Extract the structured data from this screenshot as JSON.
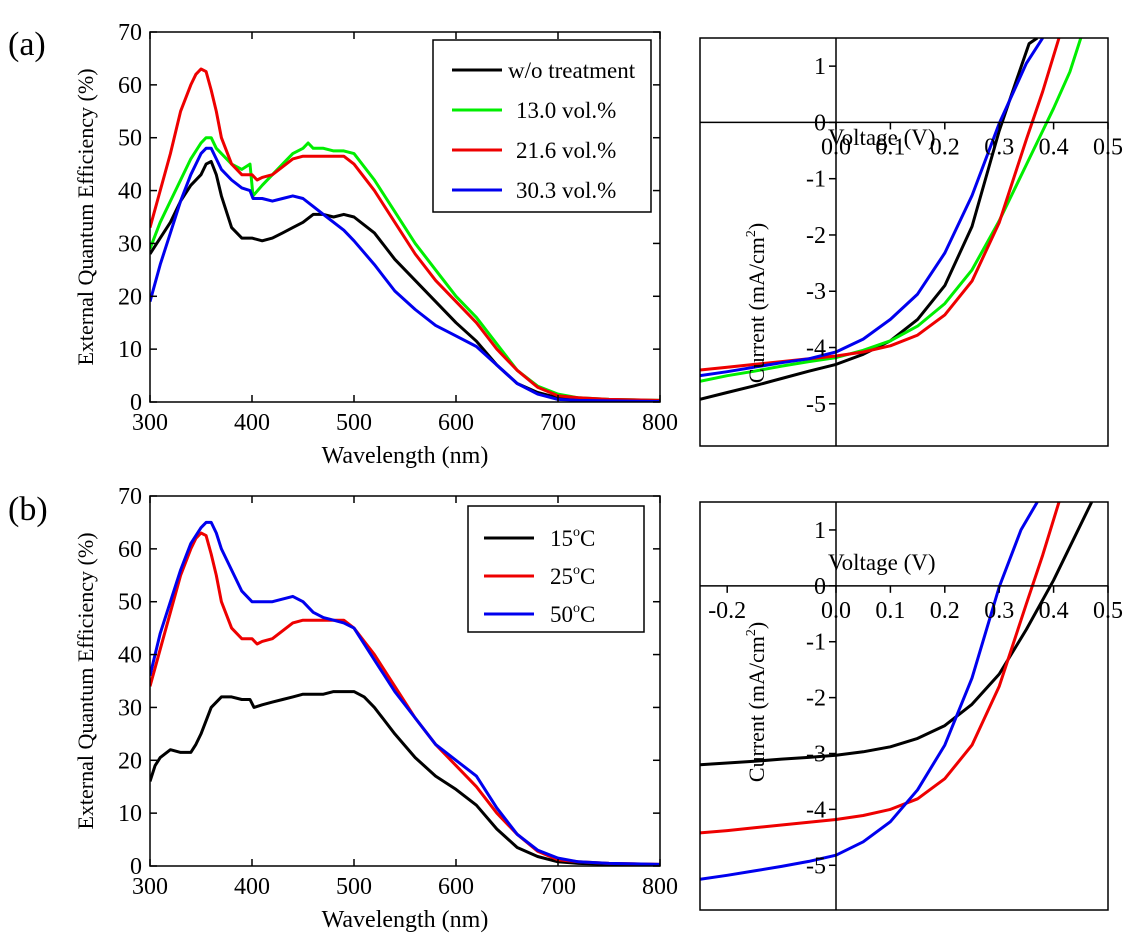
{
  "panel_labels": [
    "(a)",
    "(b)"
  ],
  "chart_data": [
    {
      "id": "eqe_a",
      "type": "line",
      "xlabel": "Wavelength (nm)",
      "ylabel": "External Quantum Efficiency (%)",
      "xlim": [
        300,
        800
      ],
      "ylim": [
        0,
        70
      ],
      "xticks": [
        "300",
        "400",
        "500",
        "600",
        "700",
        "800"
      ],
      "yticks": [
        "0",
        "10",
        "20",
        "30",
        "40",
        "50",
        "60",
        "70"
      ],
      "legend_position": "top-right",
      "series": [
        {
          "name": "w/o treatment",
          "color": "#000000",
          "x": [
            300,
            310,
            320,
            330,
            340,
            350,
            355,
            360,
            365,
            370,
            380,
            390,
            400,
            410,
            420,
            430,
            440,
            450,
            460,
            470,
            480,
            490,
            500,
            520,
            540,
            560,
            580,
            600,
            620,
            640,
            660,
            680,
            700,
            720,
            750,
            800
          ],
          "y": [
            28,
            31,
            34,
            38,
            41,
            43,
            45,
            45.5,
            43,
            39,
            33,
            31,
            31,
            30.5,
            31,
            32,
            33,
            34,
            35.5,
            35.5,
            35,
            35.5,
            35,
            32,
            27,
            23,
            19,
            15,
            11.5,
            7,
            3.5,
            1.8,
            0.8,
            0.5,
            0.3,
            0.2
          ]
        },
        {
          "name": "13.0 vol.%",
          "color": "#00ee00",
          "x": [
            300,
            310,
            320,
            330,
            340,
            350,
            355,
            360,
            365,
            370,
            380,
            390,
            398,
            401,
            410,
            420,
            430,
            440,
            450,
            455,
            460,
            470,
            480,
            490,
            500,
            520,
            540,
            560,
            580,
            600,
            620,
            640,
            660,
            680,
            700,
            720,
            750,
            800
          ],
          "y": [
            29,
            34,
            38,
            42,
            46,
            49,
            50,
            50,
            48,
            47,
            45,
            44,
            45,
            39,
            41,
            43,
            45,
            47,
            48,
            49,
            48,
            48,
            47.5,
            47.5,
            47,
            42,
            36,
            30,
            25,
            20,
            16,
            11,
            6,
            3,
            1.5,
            0.8,
            0.5,
            0.3
          ]
        },
        {
          "name": "21.6 vol.%",
          "color": "#ee0000",
          "x": [
            300,
            310,
            320,
            330,
            340,
            345,
            350,
            355,
            360,
            365,
            370,
            380,
            390,
            400,
            405,
            410,
            420,
            430,
            440,
            450,
            460,
            470,
            480,
            490,
            500,
            520,
            540,
            560,
            580,
            600,
            620,
            640,
            660,
            680,
            700,
            720,
            750,
            800
          ],
          "y": [
            33,
            40,
            47,
            55,
            60,
            62,
            63,
            62.5,
            59,
            55,
            50,
            45,
            43,
            43,
            42,
            42.5,
            43,
            44.5,
            46,
            46.5,
            46.5,
            46.5,
            46.5,
            46.5,
            45,
            40,
            34,
            28,
            23,
            19,
            15,
            10,
            6,
            2.8,
            1.2,
            0.8,
            0.5,
            0.3
          ]
        },
        {
          "name": "30.3 vol.%",
          "color": "#0000ee",
          "x": [
            300,
            310,
            320,
            330,
            340,
            350,
            355,
            360,
            365,
            370,
            380,
            390,
            398,
            401,
            410,
            420,
            430,
            440,
            450,
            460,
            470,
            480,
            490,
            500,
            520,
            540,
            560,
            580,
            600,
            620,
            640,
            660,
            680,
            700,
            720,
            750,
            800
          ],
          "y": [
            19,
            26,
            32,
            38,
            43,
            47,
            48,
            48,
            46,
            44,
            42,
            40.5,
            40,
            38.5,
            38.5,
            38,
            38.5,
            39,
            38.5,
            37,
            35.5,
            34,
            32.5,
            30.5,
            26,
            21,
            17.5,
            14.5,
            12.5,
            10.5,
            7,
            3.5,
            1.5,
            0.5,
            0.3,
            0.2,
            0.1
          ]
        }
      ]
    },
    {
      "id": "jv_a",
      "type": "line",
      "xlabel": "Voltage (V)",
      "ylabel": "Current (mA/cm",
      "ylabel_sup": "2",
      "ylabel_close": ")",
      "xlim": [
        -0.25,
        0.5
      ],
      "ylim": [
        -5.75,
        1.5
      ],
      "xticks": [
        "0.0",
        "0.1",
        "0.2",
        "0.3",
        "0.4",
        "0.5"
      ],
      "yticks": [
        "-5",
        "-4",
        "-3",
        "-2",
        "-1",
        "0",
        "1"
      ],
      "series": [
        {
          "name": "w/o treatment",
          "color": "#000000",
          "x": [
            -0.25,
            -0.2,
            -0.15,
            -0.1,
            -0.05,
            0,
            0.05,
            0.1,
            0.15,
            0.2,
            0.25,
            0.3,
            0.33,
            0.355,
            0.37
          ],
          "y": [
            -4.92,
            -4.8,
            -4.68,
            -4.55,
            -4.42,
            -4.3,
            -4.12,
            -3.88,
            -3.5,
            -2.9,
            -1.85,
            -0.15,
            0.7,
            1.4,
            1.5
          ]
        },
        {
          "name": "13.0 vol.%",
          "color": "#00ee00",
          "x": [
            -0.25,
            -0.2,
            -0.15,
            -0.1,
            -0.05,
            0,
            0.05,
            0.1,
            0.15,
            0.2,
            0.25,
            0.3,
            0.35,
            0.4,
            0.43,
            0.45
          ],
          "y": [
            -4.6,
            -4.5,
            -4.42,
            -4.33,
            -4.25,
            -4.18,
            -4.05,
            -3.88,
            -3.62,
            -3.22,
            -2.62,
            -1.75,
            -0.75,
            0.25,
            0.9,
            1.5
          ]
        },
        {
          "name": "21.6 vol.%",
          "color": "#ee0000",
          "x": [
            -0.25,
            -0.2,
            -0.15,
            -0.1,
            -0.05,
            0,
            0.05,
            0.1,
            0.15,
            0.2,
            0.25,
            0.3,
            0.35,
            0.38,
            0.41
          ],
          "y": [
            -4.4,
            -4.35,
            -4.3,
            -4.25,
            -4.2,
            -4.15,
            -4.08,
            -3.97,
            -3.78,
            -3.42,
            -2.82,
            -1.78,
            -0.3,
            0.55,
            1.5
          ]
        },
        {
          "name": "30.3 vol.%",
          "color": "#0000ee",
          "x": [
            -0.25,
            -0.2,
            -0.15,
            -0.1,
            -0.05,
            0,
            0.05,
            0.1,
            0.15,
            0.2,
            0.25,
            0.3,
            0.35,
            0.38
          ],
          "y": [
            -4.5,
            -4.43,
            -4.35,
            -4.27,
            -4.2,
            -4.08,
            -3.85,
            -3.5,
            -3.05,
            -2.32,
            -1.3,
            -0.02,
            1.05,
            1.5
          ]
        }
      ]
    },
    {
      "id": "eqe_b",
      "type": "line",
      "xlabel": "Wavelength (nm)",
      "ylabel": "External Quantum Efficiency (%)",
      "xlim": [
        300,
        800
      ],
      "ylim": [
        0,
        70
      ],
      "xticks": [
        "300",
        "400",
        "500",
        "600",
        "700",
        "800"
      ],
      "yticks": [
        "0",
        "10",
        "20",
        "30",
        "40",
        "50",
        "60",
        "70"
      ],
      "legend_position": "top-right",
      "series": [
        {
          "name": "15",
          "unit": "C",
          "degree": "o",
          "color": "#000000",
          "x": [
            300,
            305,
            310,
            320,
            330,
            340,
            345,
            350,
            360,
            370,
            375,
            380,
            390,
            398,
            402,
            410,
            420,
            430,
            440,
            450,
            460,
            470,
            480,
            490,
            500,
            510,
            520,
            540,
            560,
            580,
            600,
            620,
            640,
            660,
            680,
            700,
            720,
            750,
            800
          ],
          "y": [
            16,
            19,
            20.5,
            22,
            21.5,
            21.5,
            23,
            25,
            30,
            32,
            32,
            32,
            31.5,
            31.5,
            30,
            30.5,
            31,
            31.5,
            32,
            32.5,
            32.5,
            32.5,
            33,
            33,
            33,
            32,
            30,
            25,
            20.5,
            17,
            14.5,
            11.5,
            7,
            3.5,
            1.8,
            0.8,
            0.5,
            0.3,
            0.2
          ]
        },
        {
          "name": "25",
          "unit": "C",
          "degree": "o",
          "color": "#ee0000",
          "x": [
            300,
            310,
            320,
            330,
            340,
            345,
            350,
            355,
            360,
            365,
            370,
            380,
            390,
            400,
            405,
            410,
            420,
            430,
            440,
            450,
            460,
            470,
            480,
            490,
            500,
            520,
            540,
            560,
            580,
            600,
            620,
            640,
            660,
            680,
            700,
            720,
            750,
            800
          ],
          "y": [
            34,
            41,
            48,
            55,
            60,
            62,
            63,
            62.5,
            59,
            55,
            50,
            45,
            43,
            43,
            42,
            42.5,
            43,
            44.5,
            46,
            46.5,
            46.5,
            46.5,
            46.5,
            46.5,
            45,
            40,
            34,
            28,
            23,
            19,
            15,
            10,
            6,
            2.8,
            1.2,
            0.8,
            0.5,
            0.3
          ]
        },
        {
          "name": "50",
          "unit": "C",
          "degree": "o",
          "color": "#0000ee",
          "x": [
            300,
            310,
            320,
            330,
            340,
            350,
            355,
            360,
            365,
            370,
            380,
            390,
            400,
            410,
            420,
            430,
            440,
            450,
            460,
            470,
            480,
            490,
            500,
            520,
            540,
            560,
            580,
            600,
            620,
            640,
            660,
            680,
            700,
            720,
            750,
            800
          ],
          "y": [
            36,
            44,
            50,
            56,
            61,
            64,
            65,
            65,
            63,
            60,
            56,
            52,
            50,
            50,
            50,
            50.5,
            51,
            50,
            48,
            47,
            46.5,
            46,
            45,
            39,
            33,
            28,
            23,
            20,
            17,
            11,
            6,
            3,
            1.5,
            0.8,
            0.5,
            0.3
          ]
        }
      ]
    },
    {
      "id": "jv_b",
      "type": "line",
      "xlabel": "Voltage (V)",
      "ylabel": "Current (mA/cm",
      "ylabel_sup": "2",
      "ylabel_close": ")",
      "xlim": [
        -0.25,
        0.5
      ],
      "ylim": [
        -5.8,
        1.5
      ],
      "xticks": [
        "-0.2",
        "0.0",
        "0.1",
        "0.2",
        "0.3",
        "0.4",
        "0.5"
      ],
      "yticks": [
        "-5",
        "-4",
        "-3",
        "-2",
        "-1",
        "0",
        "1"
      ],
      "series": [
        {
          "name": "15",
          "color": "#000000",
          "x": [
            -0.25,
            -0.2,
            -0.15,
            -0.1,
            -0.05,
            0,
            0.05,
            0.1,
            0.15,
            0.2,
            0.25,
            0.3,
            0.35,
            0.4,
            0.43,
            0.47
          ],
          "y": [
            -3.2,
            -3.17,
            -3.14,
            -3.1,
            -3.07,
            -3.03,
            -2.97,
            -2.88,
            -2.73,
            -2.5,
            -2.12,
            -1.58,
            -0.78,
            0.1,
            0.7,
            1.5
          ]
        },
        {
          "name": "25",
          "color": "#ee0000",
          "x": [
            -0.25,
            -0.2,
            -0.15,
            -0.1,
            -0.05,
            0,
            0.05,
            0.1,
            0.15,
            0.2,
            0.25,
            0.3,
            0.35,
            0.38,
            0.41
          ],
          "y": [
            -4.42,
            -4.38,
            -4.33,
            -4.28,
            -4.23,
            -4.18,
            -4.11,
            -4.0,
            -3.81,
            -3.45,
            -2.85,
            -1.8,
            -0.32,
            0.55,
            1.5
          ]
        },
        {
          "name": "50",
          "color": "#0000ee",
          "x": [
            -0.25,
            -0.2,
            -0.15,
            -0.1,
            -0.05,
            0,
            0.05,
            0.1,
            0.15,
            0.2,
            0.25,
            0.3,
            0.34,
            0.37
          ],
          "y": [
            -5.25,
            -5.18,
            -5.1,
            -5.02,
            -4.93,
            -4.82,
            -4.58,
            -4.22,
            -3.65,
            -2.85,
            -1.65,
            -0.02,
            1.0,
            1.5
          ]
        }
      ]
    }
  ]
}
